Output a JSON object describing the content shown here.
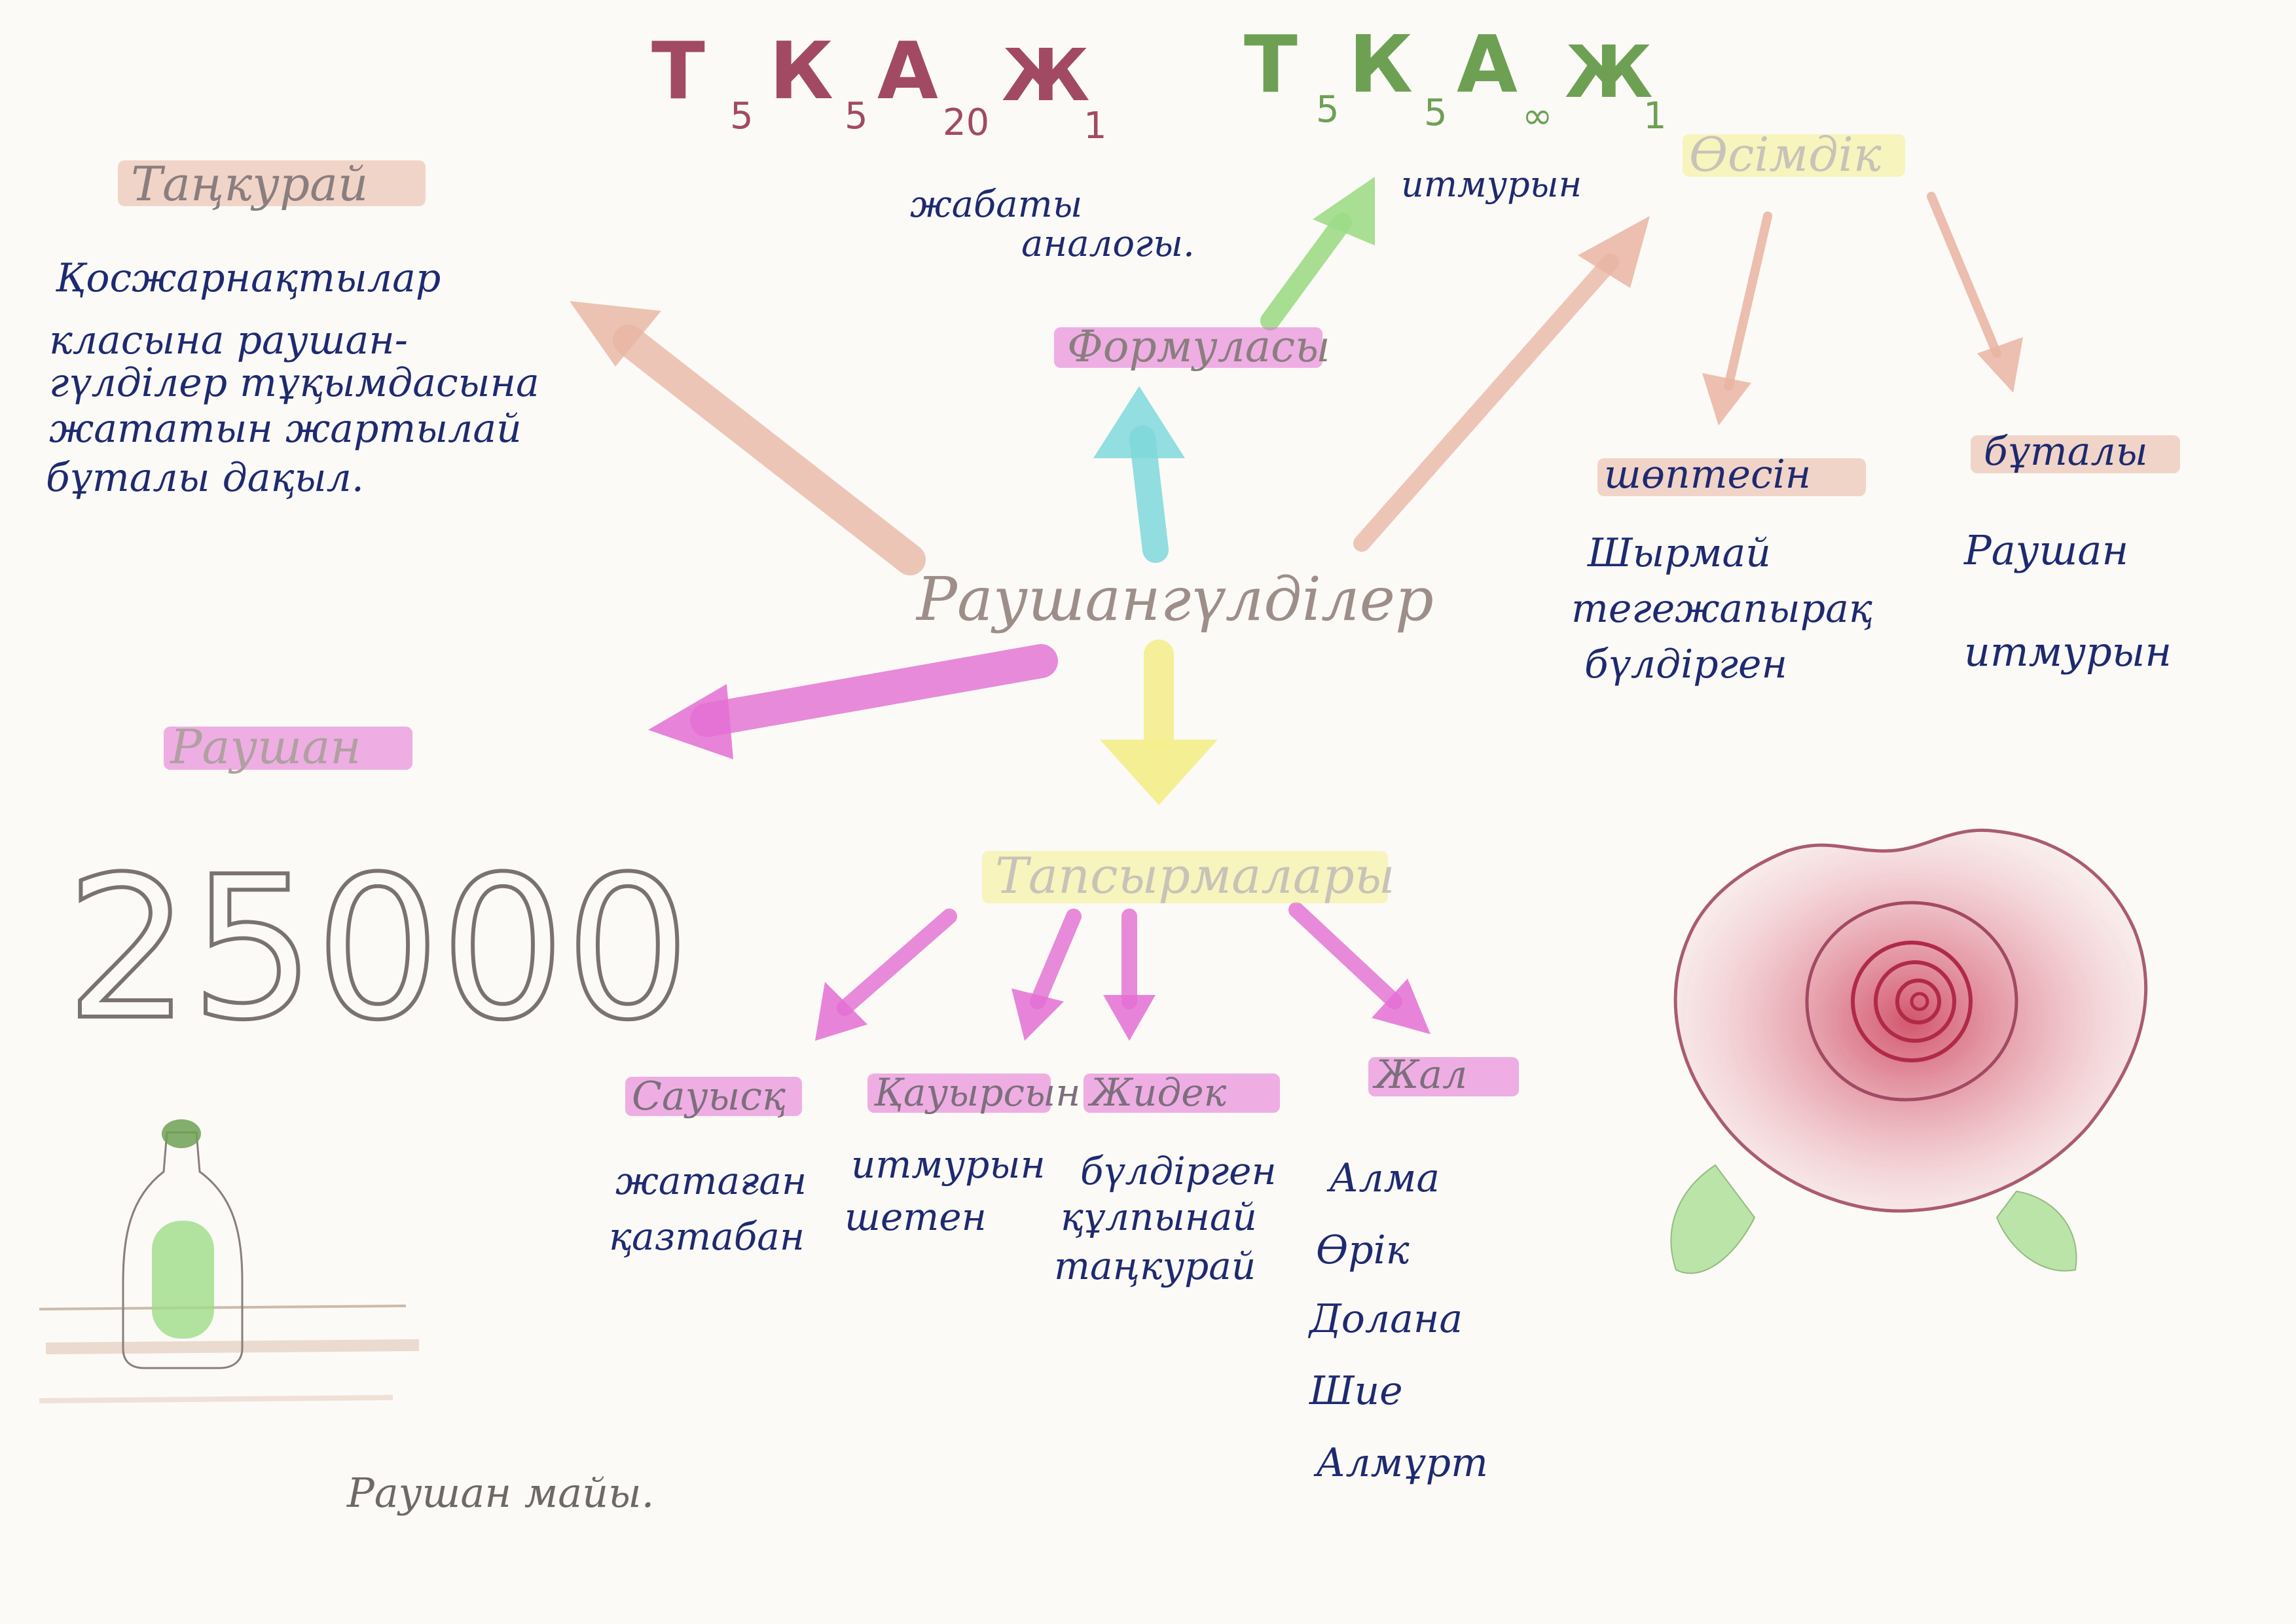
{
  "colors": {
    "ink": "#1e2a70",
    "pencil": "#8a7e7e",
    "red_formula": "#a24a63",
    "green_formula": "#6ea054",
    "peach": "#e9b4a3",
    "magenta": "#e36fd3",
    "yellow": "#f4ee8e",
    "cyan": "#7fd8dc",
    "light_green": "#9fdc88"
  },
  "formula_left": {
    "t": "Т",
    "t_sub": "5",
    "k": "К",
    "k_sub": "5",
    "a": "А",
    "a_sub": "20",
    "zh": "Ж",
    "zh_sub": "1"
  },
  "formula_right": {
    "t": "Т",
    "t_sub": "5",
    "k": "К",
    "k_sub": "5",
    "a": "А",
    "a_sub": "∞",
    "zh": "Ж",
    "zh_sub": "1"
  },
  "formula_left_caption": [
    "жабаты",
    "аналогы."
  ],
  "formula_right_caption": "итмурын",
  "center_label": "Раушангүлділер",
  "top_label": "Формуласы",
  "bottom_label": "Тапсырмалары",
  "right_label": "Өсімдік",
  "left_top_label": "Таңкурай",
  "left_top_text": [
    "Қосжарнақтылар",
    "класына раушан-",
    "гүлділер тұқымдасына",
    "жататын жартылай",
    "бұталы дақыл."
  ],
  "left_mid_label": "Раушан",
  "big_number": "25000",
  "bottle_caption": "Раушан майы.",
  "right_children": [
    {
      "label": "шөптесін",
      "lines": [
        "Шырмай",
        "тегежапырақ",
        "бүлдірген"
      ]
    },
    {
      "label": "бұталы",
      "lines": [
        "Раушан",
        "итмурын"
      ]
    }
  ],
  "bottom_children": [
    {
      "label": "Сауысқ",
      "lines": [
        "жатаған",
        "қазтабан"
      ]
    },
    {
      "label": "Қауырсын",
      "lines": [
        "итмурын",
        "шетен"
      ]
    },
    {
      "label": "Жидек",
      "lines": [
        "бүлдірген",
        "құлпынай",
        "таңкурай"
      ]
    },
    {
      "label": "Жал",
      "lines": [
        "Алма",
        "Өрік",
        "Долана",
        "Шие",
        "Алмұрт"
      ]
    }
  ]
}
